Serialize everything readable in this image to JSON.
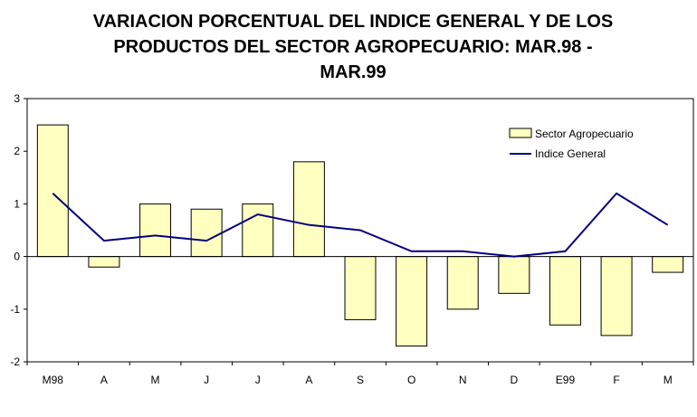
{
  "title_lines": [
    "VARIACION PORCENTUAL DEL INDICE GENERAL Y DE LOS",
    "PRODUCTOS DEL SECTOR AGROPECUARIO: MAR.98 -",
    "MAR.99"
  ],
  "colors": {
    "bar_fill": "#ffffc0",
    "bar_stroke": "#000000",
    "line": "#000080"
  },
  "chart_data": {
    "type": "bar",
    "title": "VARIACION PORCENTUAL DEL INDICE GENERAL Y DE LOS PRODUCTOS DEL SECTOR AGROPECUARIO: MAR.98 - MAR.99",
    "categories": [
      "M98",
      "A",
      "M",
      "J",
      "J",
      "A",
      "S",
      "O",
      "N",
      "D",
      "E99",
      "F",
      "M"
    ],
    "series": [
      {
        "name": "Sector Agropecuario",
        "type": "bar",
        "values": [
          2.5,
          -0.2,
          1.0,
          0.9,
          1.0,
          1.8,
          -1.2,
          -1.7,
          -1.0,
          -0.7,
          -1.3,
          -1.5,
          -0.3
        ]
      },
      {
        "name": "Indice General",
        "type": "line",
        "values": [
          1.2,
          0.3,
          0.4,
          0.3,
          0.8,
          0.6,
          0.5,
          0.1,
          0.1,
          0.0,
          0.1,
          1.2,
          0.6
        ]
      }
    ],
    "ylim": [
      -2,
      3
    ],
    "yticks": [
      -2,
      -1,
      0,
      1,
      2,
      3
    ],
    "xlabel": "",
    "ylabel": "",
    "grid": false,
    "legend_position": "top-right"
  }
}
